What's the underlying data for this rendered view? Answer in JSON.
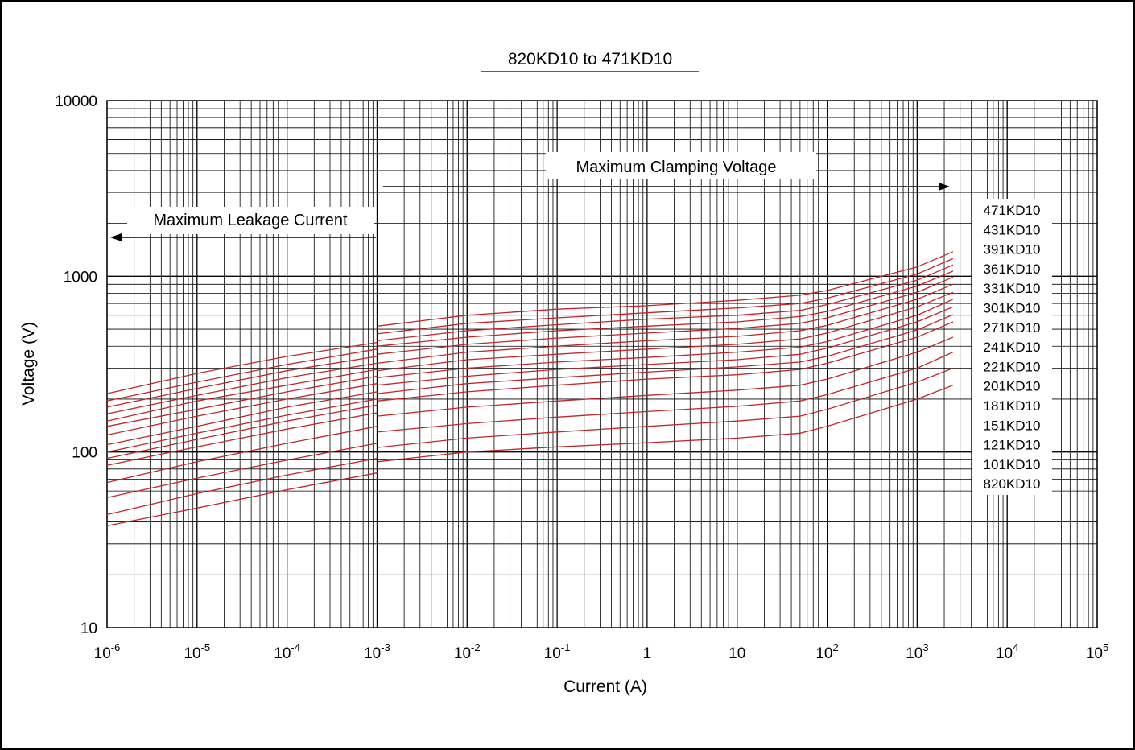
{
  "chart_data": {
    "type": "line",
    "title": "820KD10 to 471KD10",
    "xlabel": "Current (A)",
    "ylabel": "Voltage (V)",
    "x_scale": "log",
    "y_scale": "log",
    "xlim": [
      1e-06,
      100000
    ],
    "ylim": [
      10,
      10000
    ],
    "grid": true,
    "x_ticks": [
      {
        "base": "10",
        "exp": "-6"
      },
      {
        "base": "10",
        "exp": "-5"
      },
      {
        "base": "10",
        "exp": "-4"
      },
      {
        "base": "10",
        "exp": "-3"
      },
      {
        "base": "10",
        "exp": "-2"
      },
      {
        "base": "10",
        "exp": "-1"
      },
      {
        "base": "1",
        "exp": ""
      },
      {
        "base": "10",
        "exp": ""
      },
      {
        "base": "10",
        "exp": "2"
      },
      {
        "base": "10",
        "exp": "3"
      },
      {
        "base": "10",
        "exp": "4"
      },
      {
        "base": "10",
        "exp": "5"
      }
    ],
    "y_ticks": [
      "10",
      "100",
      "1000",
      "10000"
    ],
    "annotations": {
      "clamping": "Maximum Clamping Voltage",
      "leakage": "Maximum Leakage Current"
    },
    "line_color": "#c0272d",
    "x": [
      1e-06,
      1e-05,
      0.0001,
      0.001,
      0.01,
      0.1,
      1,
      10,
      50,
      100,
      1000,
      2500
    ],
    "series": [
      {
        "name": "471KD10",
        "leakage": [
          215,
          280,
          350,
          420
        ],
        "clamping": [
          520,
          600,
          650,
          680,
          730,
          780,
          830,
          1130,
          1380,
          1630
        ]
      },
      {
        "name": "431KD10",
        "leakage": [
          195,
          250,
          315,
          385
        ],
        "clamping": [
          470,
          540,
          580,
          620,
          660,
          700,
          750,
          1030,
          1260,
          1500
        ]
      },
      {
        "name": "391KD10",
        "leakage": [
          180,
          230,
          290,
          350
        ],
        "clamping": [
          430,
          490,
          530,
          570,
          600,
          640,
          690,
          950,
          1160,
          1380
        ]
      },
      {
        "name": "361KD10",
        "leakage": [
          165,
          210,
          265,
          320
        ],
        "clamping": [
          400,
          450,
          490,
          520,
          550,
          590,
          630,
          880,
          1070,
          1280
        ]
      },
      {
        "name": "331KD10",
        "leakage": [
          150,
          195,
          240,
          295
        ],
        "clamping": [
          360,
          410,
          445,
          475,
          505,
          540,
          580,
          810,
          990,
          1170
        ]
      },
      {
        "name": "301KD10",
        "leakage": [
          140,
          175,
          220,
          270
        ],
        "clamping": [
          320,
          370,
          400,
          430,
          455,
          490,
          525,
          740,
          900,
          1060
        ]
      },
      {
        "name": "271KD10",
        "leakage": [
          125,
          160,
          200,
          245
        ],
        "clamping": [
          290,
          335,
          360,
          385,
          410,
          440,
          475,
          670,
          810,
          960
        ]
      },
      {
        "name": "241KD10",
        "leakage": [
          110,
          140,
          180,
          220
        ],
        "clamping": [
          265,
          300,
          325,
          345,
          370,
          395,
          425,
          600,
          740,
          870
        ]
      },
      {
        "name": "221KD10",
        "leakage": [
          100,
          128,
          162,
          200
        ],
        "clamping": [
          240,
          270,
          295,
          315,
          335,
          360,
          390,
          550,
          670,
          790
        ]
      },
      {
        "name": "201KD10",
        "leakage": [
          92,
          118,
          150,
          185
        ],
        "clamping": [
          215,
          245,
          265,
          285,
          305,
          325,
          350,
          495,
          605,
          720
        ]
      },
      {
        "name": "181KD10",
        "leakage": [
          84,
          107,
          135,
          167
        ],
        "clamping": [
          195,
          220,
          240,
          260,
          275,
          295,
          320,
          450,
          550,
          650
        ]
      },
      {
        "name": "151KD10",
        "leakage": [
          67,
          88,
          112,
          140
        ],
        "clamping": [
          160,
          180,
          195,
          210,
          225,
          240,
          260,
          370,
          450,
          530
        ]
      },
      {
        "name": "121KD10",
        "leakage": [
          55,
          71,
          90,
          112
        ],
        "clamping": [
          130,
          145,
          158,
          170,
          182,
          195,
          212,
          300,
          370,
          430
        ]
      },
      {
        "name": "101KD10",
        "leakage": [
          44,
          58,
          74,
          92
        ],
        "clamping": [
          106,
          120,
          130,
          140,
          150,
          160,
          175,
          250,
          300,
          355
        ]
      },
      {
        "name": "820KD10",
        "leakage": [
          38,
          48,
          61,
          76
        ],
        "clamping": [
          88,
          100,
          107,
          113,
          120,
          128,
          140,
          200,
          240,
          285
        ]
      }
    ]
  }
}
